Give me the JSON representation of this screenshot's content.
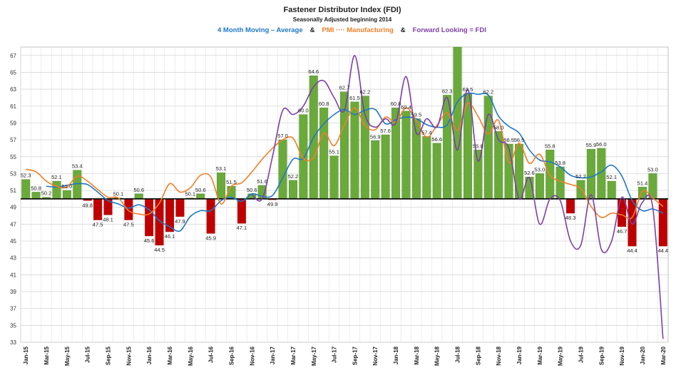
{
  "chart_data": {
    "type": "bar",
    "title": "Fastener Distributor Index (FDI)",
    "subtitle": "Seasonally Adjusted beginning 2014",
    "legend_separator": "&",
    "categories": [
      "Jan-15",
      null,
      "Mar-15",
      null,
      "May-15",
      null,
      "Jul-15",
      null,
      "Sep-15",
      null,
      "Nov-15",
      null,
      "Jan-16",
      null,
      "Mar-16",
      null,
      "May-16",
      null,
      "Jul-16",
      null,
      "Sep-16",
      null,
      "Nov-16",
      null,
      "Jan-17",
      null,
      "Mar-17",
      null,
      "May-17",
      null,
      "Jul-17",
      null,
      "Sep-17",
      null,
      "Nov-17",
      null,
      "Jan-18",
      null,
      "Mar-18",
      null,
      "May-18",
      null,
      "Jul-18",
      null,
      "Sep-18",
      null,
      "Nov-18",
      null,
      "Jan-19",
      null,
      "Mar-19",
      null,
      "May-19",
      null,
      "Jul-19",
      null,
      "Sep-19",
      null,
      "Nov-19",
      null,
      "Jan-20",
      null,
      "Mar-20"
    ],
    "values": [
      52.3,
      50.8,
      50.2,
      52.1,
      51.0,
      53.4,
      49.8,
      47.5,
      48.1,
      50.1,
      47.5,
      50.6,
      45.6,
      44.5,
      46.1,
      47.9,
      50.1,
      50.6,
      45.9,
      53.1,
      51.5,
      47.1,
      50.6,
      51.6,
      49.9,
      57.0,
      52.2,
      60.0,
      64.6,
      60.8,
      55.1,
      62.7,
      61.5,
      62.2,
      56.9,
      57.6,
      60.8,
      60.4,
      59.5,
      57.4,
      56.6,
      62.3,
      68,
      62.5,
      55.8,
      62.2,
      58.0,
      56.5,
      56.5,
      52.6,
      53.0,
      55.8,
      53.8,
      48.3,
      52.2,
      55.9,
      56.0,
      52.1,
      46.7,
      44.4,
      51.4,
      53.0,
      44.4
    ],
    "value_labels": [
      "52.3",
      "50.8",
      "50.2",
      "52.1",
      "51.0",
      "53.4",
      "49.8",
      "47.5",
      "48.1",
      "50.1",
      "47.5",
      "50.6",
      "45.6",
      "44.5",
      "46.1",
      "47.9",
      "50.1",
      "50.6",
      "45.9",
      "53.1",
      "51.5",
      "47.1",
      "50.6",
      "51.6",
      "49.9",
      "57.0",
      "52.2",
      "60.0",
      "64.6",
      "60.8",
      "55.1",
      "62.7",
      "61.5",
      "62.2",
      "56.9",
      "57.6",
      "60.8",
      "60.4",
      "59.5",
      "57.4",
      "56.6",
      "62.3",
      null,
      "62.5",
      "55.8",
      "62.2",
      "58.0",
      "56.5",
      "56.5",
      "52.6",
      "53.0",
      "55.8",
      "53.8",
      "48.3",
      "52.2",
      "55.9",
      "56.0",
      "52.1",
      "46.7",
      "44.4",
      "51.4",
      "53.0",
      "44.4"
    ],
    "baseline": 50,
    "color_above": "#6aaa3a",
    "color_below": "#c00000",
    "series": [
      {
        "name": "4 Month Moving – Average",
        "color": "#1f77c8",
        "type": "line",
        "values": [
          null,
          null,
          51.5,
          51.4,
          51.6,
          51.8,
          51.7,
          50.8,
          49.8,
          49.4,
          48.9,
          49.3,
          48.7,
          47.4,
          46.7,
          46.2,
          47.9,
          48.6,
          48.6,
          49.8,
          50.2,
          49.7,
          50.6,
          50.3,
          50.4,
          52.5,
          54.7,
          54.8,
          57.3,
          58.9,
          60.0,
          60.6,
          60.0,
          60.5,
          60.6,
          58.9,
          59.4,
          59.7,
          59.5,
          58.8,
          58.5,
          58.8,
          61.5,
          62.5,
          62.4,
          62.3,
          59.8,
          58.6,
          57.8,
          55.8,
          54.6,
          54.4,
          53.8,
          52.8,
          52.5,
          52.6,
          53.2,
          54.0,
          52.7,
          49.8,
          48.6,
          48.8,
          48.3
        ]
      },
      {
        "name": "PMI ···· Manufacturing",
        "color": "#f07f2a",
        "type": "line",
        "values": [
          53.5,
          53.2,
          52.1,
          51.5,
          51.4,
          52.7,
          52.1,
          51.1,
          50.2,
          50.1,
          48.6,
          48.2,
          48.2,
          49.5,
          51.8,
          50.8,
          51.3,
          52.8,
          52.6,
          49.4,
          51.5,
          51.9,
          53.2,
          54.7,
          56.0,
          57.0,
          57.2,
          54.8,
          54.9,
          57.8,
          56.3,
          58.8,
          60.8,
          58.7,
          58.2,
          59.7,
          59.1,
          60.8,
          59.3,
          57.3,
          58.7,
          60.2,
          58.1,
          61.3,
          59.8,
          57.7,
          59.3,
          54.3,
          56.6,
          54.2,
          55.3,
          52.8,
          52.1,
          51.7,
          51.2,
          49.1,
          47.8,
          48.3,
          48.1,
          47.8,
          50.9,
          50.1,
          49.1
        ]
      },
      {
        "name": "Forward Looking = FDI",
        "color": "#7e3fa8",
        "type": "line",
        "values": [
          null,
          null,
          null,
          null,
          null,
          null,
          null,
          null,
          null,
          null,
          null,
          null,
          null,
          null,
          null,
          null,
          null,
          null,
          null,
          null,
          null,
          null,
          50.5,
          50.0,
          55.0,
          60.5,
          60.0,
          61.0,
          63.3,
          64.0,
          62.0,
          60.5,
          67.0,
          60.0,
          58.5,
          59.5,
          59.0,
          64.5,
          57.8,
          59.5,
          58.5,
          62.0,
          55.8,
          63.0,
          54.5,
          60.0,
          57.0,
          56.0,
          50.0,
          52.5,
          47.0,
          50.0,
          49.8,
          45.0,
          44.5,
          50.5,
          44.0,
          45.0,
          50.2,
          47.0,
          49.6,
          49.0,
          33.4
        ]
      }
    ],
    "ylim": [
      33,
      68
    ],
    "yticks": [
      33,
      35,
      37,
      39,
      41,
      43,
      45,
      47,
      49,
      51,
      53,
      55,
      57,
      59,
      61,
      63,
      65,
      67
    ],
    "grid": true
  }
}
